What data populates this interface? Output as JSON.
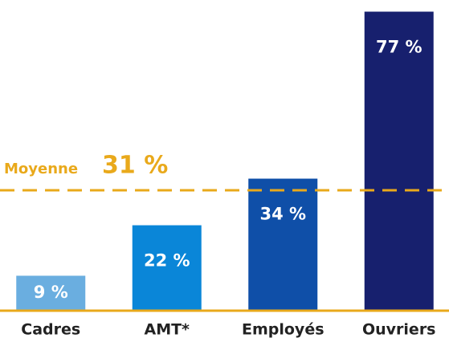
{
  "chart_data": {
    "type": "bar",
    "categories": [
      "Cadres",
      "AMT*",
      "Employés",
      "Ouvriers"
    ],
    "values": [
      9,
      22,
      34,
      77
    ],
    "value_labels": [
      "9 %",
      "22 %",
      "34 %",
      "77 %"
    ],
    "colors": [
      "#6aaee0",
      "#0a86d8",
      "#0f4fa8",
      "#17206e"
    ],
    "ylim": [
      0,
      80
    ],
    "average": {
      "label": "Moyenne",
      "value": 31,
      "value_label": "31 %",
      "color": "#e9a91b"
    }
  }
}
